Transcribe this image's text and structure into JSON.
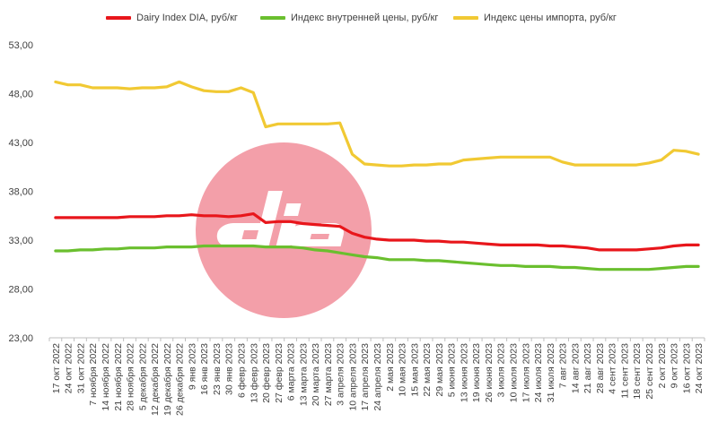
{
  "chart_data": {
    "type": "line",
    "title": "",
    "xlabel": "",
    "ylabel": "",
    "ylim": [
      23,
      53
    ],
    "yticks": [
      "23,00",
      "28,00",
      "33,00",
      "38,00",
      "43,00",
      "48,00",
      "53,00"
    ],
    "ytick_values": [
      23,
      28,
      33,
      38,
      43,
      48,
      53
    ],
    "grid": false,
    "legend_position": "top",
    "x": [
      "17 окт 2022",
      "24 окт 2022",
      "31 окт 2022",
      "7 ноября 2022",
      "14 ноября 2022",
      "21 ноября 2022",
      "28 ноября 2022",
      "5 декабря 2022",
      "12 декабря 2022",
      "19 декабря 2022",
      "26 декабря 2022",
      "9 янв 2023",
      "16 янв 2023",
      "23 янв 2023",
      "30 янв 2023",
      "6 февр 2023",
      "13 февр 2023",
      "20 февр 2023",
      "27 февр 2023",
      "6 марта 2023",
      "13 марта 2023",
      "20 марта 2023",
      "27 марта 2023",
      "3 апреля 2023",
      "10 апреля 2023",
      "17 апреля 2023",
      "24 апреля 2023",
      "2 мая 2023",
      "10 мая 2023",
      "15 мая 2023",
      "22 мая 2023",
      "29 мая 2023",
      "5 июня 2023",
      "13 июня 2023",
      "19 июня 2023",
      "26 июня 2023",
      "3 июля 2023",
      "10 июля 2023",
      "17 июля 2023",
      "24 июля 2023",
      "31 июля 2023",
      "7 авг 2023",
      "14 авг 2023",
      "21 авг 2023",
      "28 авг 2023",
      "4 сент 2023",
      "11 сент 2023",
      "18 сент 2023",
      "25 сент 2023",
      "2 окт 2023",
      "9 окт 2023",
      "16 окт 2023",
      "24 окт 2023"
    ],
    "series": [
      {
        "name": "Dairy Index DIA, руб/кг",
        "color": "#e8161b",
        "values": [
          35.3,
          35.3,
          35.3,
          35.3,
          35.3,
          35.3,
          35.4,
          35.4,
          35.4,
          35.5,
          35.5,
          35.6,
          35.5,
          35.5,
          35.4,
          35.5,
          35.7,
          34.8,
          34.9,
          34.9,
          34.7,
          34.6,
          34.5,
          34.4,
          33.7,
          33.3,
          33.1,
          33.0,
          33.0,
          33.0,
          32.9,
          32.9,
          32.8,
          32.8,
          32.7,
          32.6,
          32.5,
          32.5,
          32.5,
          32.5,
          32.4,
          32.4,
          32.3,
          32.2,
          32.0,
          32.0,
          32.0,
          32.0,
          32.1,
          32.2,
          32.4,
          32.5,
          32.5
        ]
      },
      {
        "name": "Индекс внутренней цены, руб/кг",
        "color": "#6abf2e",
        "values": [
          31.9,
          31.9,
          32.0,
          32.0,
          32.1,
          32.1,
          32.2,
          32.2,
          32.2,
          32.3,
          32.3,
          32.3,
          32.4,
          32.4,
          32.4,
          32.4,
          32.4,
          32.3,
          32.3,
          32.3,
          32.2,
          32.0,
          31.9,
          31.7,
          31.5,
          31.3,
          31.2,
          31.0,
          31.0,
          31.0,
          30.9,
          30.9,
          30.8,
          30.7,
          30.6,
          30.5,
          30.4,
          30.4,
          30.3,
          30.3,
          30.3,
          30.2,
          30.2,
          30.1,
          30.0,
          30.0,
          30.0,
          30.0,
          30.0,
          30.1,
          30.2,
          30.3,
          30.3
        ]
      },
      {
        "name": "Индекс цены импорта, руб/кг",
        "color": "#f1c933",
        "values": [
          49.2,
          48.9,
          48.9,
          48.6,
          48.6,
          48.6,
          48.5,
          48.6,
          48.6,
          48.7,
          49.2,
          48.7,
          48.3,
          48.2,
          48.2,
          48.6,
          48.1,
          44.6,
          44.9,
          44.9,
          44.9,
          44.9,
          44.9,
          45.0,
          41.8,
          40.8,
          40.7,
          40.6,
          40.6,
          40.7,
          40.7,
          40.8,
          40.8,
          41.2,
          41.3,
          41.4,
          41.5,
          41.5,
          41.5,
          41.5,
          41.5,
          41.0,
          40.7,
          40.7,
          40.7,
          40.7,
          40.7,
          40.7,
          40.9,
          41.2,
          42.2,
          42.1,
          41.8
        ]
      }
    ]
  }
}
